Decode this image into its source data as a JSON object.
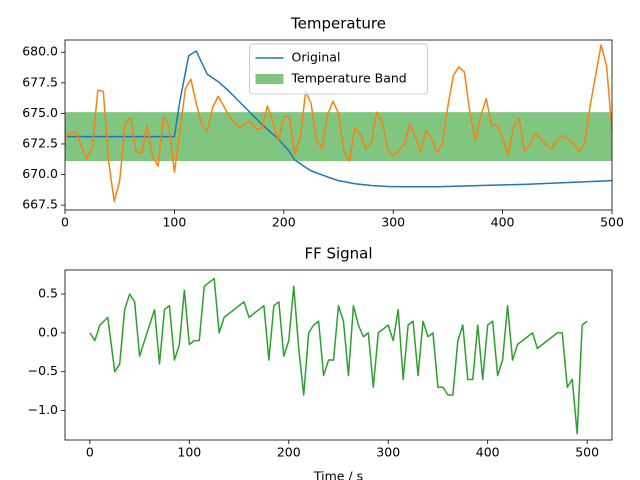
{
  "chart_data": [
    {
      "type": "line",
      "title": "Temperature",
      "xlim": [
        0,
        500
      ],
      "xticks": [
        0,
        100,
        200,
        300,
        400,
        500
      ],
      "ylim": [
        667.1,
        681.0
      ],
      "yticks": [
        667.5,
        {
          "value": 670.0,
          "label": "670.0"
        },
        672.5,
        {
          "value": 675.0,
          "label": "675.0"
        },
        677.5,
        {
          "value": 680.0,
          "label": "680.0"
        }
      ],
      "grid": false,
      "legend": "upper center",
      "band": {
        "name": "Temperature Band",
        "color": "#2ca02c",
        "alpha": 0.6,
        "lower": 671.1,
        "upper": 675.1
      },
      "series": [
        {
          "name": "Original",
          "color": "#1f77b4",
          "x": [
            0,
            50,
            100,
            105,
            113,
            120,
            130,
            140,
            150,
            160,
            170,
            180,
            195,
            205,
            210,
            218,
            225,
            240,
            250,
            265,
            280,
            295,
            310,
            340,
            380,
            420,
            460,
            500
          ],
          "values": [
            673.1,
            673.1,
            673.1,
            676.0,
            679.7,
            680.1,
            678.2,
            677.6,
            676.8,
            675.9,
            675.0,
            674.1,
            672.9,
            671.9,
            671.2,
            670.7,
            670.3,
            669.8,
            669.5,
            669.25,
            669.1,
            669.02,
            669.0,
            669.0,
            669.1,
            669.2,
            669.35,
            669.5
          ]
        },
        {
          "color": "#ff7f0e",
          "x": [
            0,
            5,
            10,
            15,
            20,
            25,
            30,
            35,
            40,
            45,
            50,
            55,
            60,
            65,
            70,
            75,
            80,
            85,
            90,
            95,
            100,
            105,
            110,
            115,
            120,
            125,
            130,
            135,
            140,
            145,
            150,
            155,
            160,
            165,
            170,
            175,
            180,
            185,
            190,
            195,
            200,
            205,
            210,
            215,
            220,
            225,
            230,
            235,
            240,
            245,
            250,
            255,
            260,
            265,
            270,
            275,
            280,
            285,
            290,
            295,
            300,
            305,
            310,
            315,
            320,
            325,
            330,
            335,
            340,
            345,
            350,
            355,
            360,
            365,
            370,
            375,
            380,
            385,
            390,
            395,
            400,
            405,
            410,
            415,
            420,
            425,
            430,
            435,
            440,
            445,
            450,
            455,
            460,
            465,
            470,
            475,
            480,
            485,
            490,
            495,
            500
          ],
          "values": [
            673.0,
            673.4,
            673.5,
            672.3,
            671.3,
            672.3,
            676.9,
            676.8,
            671.0,
            667.8,
            669.5,
            674.2,
            674.6,
            671.9,
            671.7,
            674.0,
            671.5,
            670.7,
            674.7,
            674.0,
            670.2,
            673.5,
            677.0,
            677.8,
            675.8,
            674.1,
            673.5,
            675.5,
            676.4,
            675.6,
            674.8,
            674.2,
            673.8,
            674.2,
            674.3,
            673.7,
            673.8,
            675.6,
            674.3,
            672.8,
            674.7,
            674.8,
            671.7,
            673.0,
            676.8,
            675.8,
            672.7,
            672.2,
            674.9,
            676.0,
            675.0,
            671.9,
            671.1,
            673.8,
            673.3,
            672.1,
            672.6,
            675.1,
            674.3,
            672.0,
            671.5,
            671.9,
            672.4,
            674.1,
            673.2,
            671.8,
            673.6,
            673.0,
            671.8,
            672.5,
            675.6,
            678.1,
            678.8,
            678.4,
            675.1,
            672.8,
            674.8,
            676.2,
            674.0,
            674.1,
            673.0,
            671.6,
            673.9,
            674.6,
            671.9,
            672.4,
            673.4,
            672.9,
            672.4,
            672.1,
            672.8,
            673.2,
            672.9,
            672.5,
            671.9,
            672.5,
            675.6,
            678.1,
            680.6,
            678.9,
            673.6
          ]
        }
      ]
    },
    {
      "type": "line",
      "title": "FF Signal",
      "xlabel": "Time / s",
      "xlim": [
        -25,
        525
      ],
      "xticks": [
        0,
        100,
        200,
        300,
        400,
        500
      ],
      "ylim": [
        -1.38,
        0.81
      ],
      "yticks": [
        {
          "value": -1.0,
          "label": "−1.0"
        },
        {
          "value": -0.5,
          "label": "−0.5"
        },
        {
          "value": 0.0,
          "label": "0.0"
        },
        0.5
      ],
      "grid": false,
      "series": [
        {
          "color": "#2ca02c",
          "x": [
            0,
            5,
            10,
            18,
            25,
            30,
            35,
            40,
            45,
            50,
            65,
            70,
            75,
            80,
            85,
            90,
            95,
            100,
            105,
            110,
            115,
            125,
            130,
            135,
            155,
            160,
            175,
            180,
            185,
            190,
            195,
            200,
            205,
            210,
            215,
            220,
            225,
            230,
            235,
            240,
            245,
            250,
            255,
            260,
            265,
            270,
            275,
            280,
            285,
            290,
            300,
            305,
            310,
            315,
            320,
            325,
            330,
            335,
            340,
            345,
            350,
            355,
            360,
            365,
            370,
            375,
            380,
            385,
            390,
            395,
            400,
            405,
            410,
            415,
            420,
            425,
            430,
            445,
            450,
            470,
            475,
            480,
            485,
            490,
            495,
            500
          ],
          "values": [
            0.0,
            -0.1,
            0.1,
            0.2,
            -0.5,
            -0.4,
            0.3,
            0.5,
            0.4,
            -0.3,
            0.3,
            -0.4,
            0.3,
            0.35,
            -0.35,
            -0.15,
            0.55,
            -0.15,
            -0.1,
            -0.1,
            0.6,
            0.7,
            0.0,
            0.2,
            0.4,
            0.2,
            0.35,
            -0.35,
            0.35,
            0.4,
            -0.3,
            -0.1,
            0.6,
            -0.2,
            -0.8,
            0.0,
            0.1,
            0.15,
            -0.55,
            -0.35,
            -0.35,
            0.35,
            0.15,
            -0.55,
            0.35,
            0.1,
            -0.05,
            0.0,
            -0.7,
            0.0,
            0.1,
            -0.1,
            0.3,
            -0.6,
            0.1,
            0.15,
            -0.55,
            0.15,
            -0.05,
            0.0,
            -0.7,
            -0.7,
            -0.8,
            -0.8,
            -0.1,
            0.1,
            -0.6,
            -0.6,
            0.1,
            -0.6,
            0.1,
            0.15,
            -0.55,
            -0.35,
            0.35,
            -0.35,
            -0.15,
            0.0,
            -0.2,
            0.0,
            0.0,
            -0.7,
            -0.6,
            -1.3,
            0.1,
            0.15
          ]
        }
      ]
    }
  ]
}
